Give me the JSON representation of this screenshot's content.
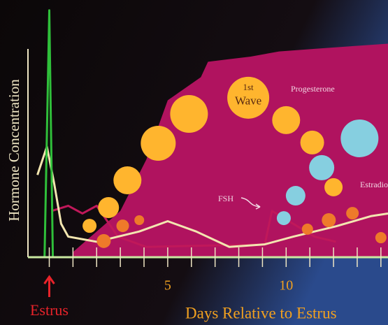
{
  "chart_data": {
    "type": "line",
    "y_label": "Hormone Concentration",
    "x_label": "Days Relative to Estrus",
    "estrus_label": "Estrus",
    "estrus_day": 0,
    "wave_label": [
      "1st",
      "Wave"
    ],
    "xlim": [
      -0.9,
      14.3
    ],
    "ylim": [
      0,
      100
    ],
    "xticks": [
      5,
      10
    ],
    "xminorticks": [
      0,
      1,
      2,
      3,
      4,
      5,
      6,
      7,
      8,
      9,
      10,
      11,
      12,
      13,
      14
    ],
    "series": [
      {
        "name": "Progesterone",
        "kind": "area",
        "color": "#b0135f",
        "x": [
          1,
          2,
          3,
          4.1,
          5,
          6.4,
          6.7,
          7.6,
          8.5,
          9.7,
          11.2,
          12.7,
          14.3
        ],
        "values": [
          2,
          10,
          18,
          38,
          61,
          70,
          76,
          77,
          78,
          80,
          81,
          82,
          83
        ]
      },
      {
        "name": "FSH",
        "kind": "line",
        "color": "#c0185a",
        "x": [
          0.1,
          0.8,
          1.4,
          2,
          2.9,
          4.1,
          9.1,
          9.4,
          10.3,
          11.2,
          12.1
        ],
        "values": [
          18,
          20,
          17,
          20,
          8,
          4,
          5,
          18,
          13,
          8,
          6
        ]
      },
      {
        "name": "Estradiol",
        "kind": "line",
        "color": "#f3e6b0",
        "x": [
          -0.5,
          -0.1,
          0.2,
          0.5,
          0.8,
          2,
          3.8,
          5,
          6.2,
          7.6,
          9.1,
          10.3,
          12.1,
          13.6,
          14.3
        ],
        "values": [
          32,
          43,
          29,
          13,
          8,
          6,
          10,
          14,
          10,
          4,
          5,
          8,
          12,
          16,
          17
        ]
      },
      {
        "kind": "line",
        "color": "#2fbf3a",
        "x": [
          -0.2,
          0,
          0.15
        ],
        "values": [
          0,
          96,
          0
        ]
      },
      {
        "kind": "bubble",
        "color": "#ffb52e",
        "x": [
          1.7,
          2.5,
          3.3,
          4.6,
          5.9,
          8.4,
          10,
          11.1,
          12
        ],
        "values": [
          12.2,
          19.3,
          29.9,
          44.3,
          55.7,
          62,
          53.3,
          44.6,
          27.2
        ],
        "sizes": [
          10,
          15,
          20,
          25,
          27,
          30,
          20,
          17,
          13
        ]
      },
      {
        "kind": "bubble",
        "color": "#86cfe0",
        "x": [
          13.1,
          11.5,
          10.4,
          9.9
        ],
        "values": [
          46.2,
          34.8,
          23.9,
          15.2
        ],
        "sizes": [
          27,
          18,
          14,
          10
        ]
      },
      {
        "kind": "bubble",
        "color": "#ee7a2a",
        "x": [
          2.3,
          3.1,
          3.8,
          10.9,
          11.8,
          12.8,
          14
        ],
        "values": [
          6.3,
          12.2,
          14.4,
          10.9,
          14.4,
          17.1,
          7.6
        ],
        "sizes": [
          10,
          9,
          7,
          8,
          10,
          9,
          8
        ]
      }
    ]
  }
}
